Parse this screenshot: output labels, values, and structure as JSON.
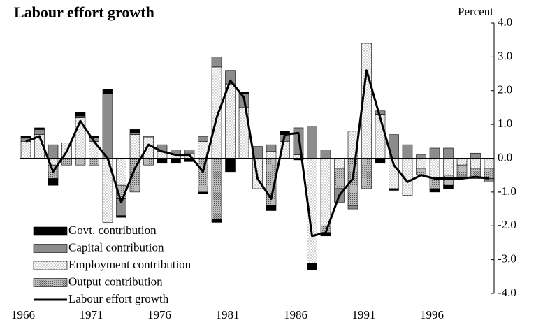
{
  "chart_data": {
    "type": "stacked-bar-line",
    "title": "Labour effort growth",
    "y_label": "Percent",
    "categories": [
      "1966",
      null,
      null,
      null,
      null,
      "1971",
      null,
      null,
      null,
      null,
      "1976",
      null,
      null,
      null,
      null,
      "1981",
      null,
      null,
      null,
      null,
      "1986",
      null,
      null,
      null,
      null,
      "1991",
      null,
      null,
      null,
      null,
      "1996",
      null,
      null,
      null,
      null
    ],
    "ylim": [
      -4,
      4
    ],
    "yticks": [
      {
        "value": 4,
        "label": "4.0"
      },
      {
        "value": 3,
        "label": "3.0"
      },
      {
        "value": 2,
        "label": "2.0"
      },
      {
        "value": 1,
        "label": "1.0"
      },
      {
        "value": 0,
        "label": "0.0"
      },
      {
        "value": -1,
        "label": "-1.0"
      },
      {
        "value": -2,
        "label": "-2.0"
      },
      {
        "value": -3,
        "label": "-3.0"
      },
      {
        "value": -4,
        "label": "-4.0"
      }
    ],
    "series": [
      {
        "name": "Govt. contribution",
        "color": "#000000",
        "pattern": "solid",
        "values": [
          0.05,
          0.05,
          -0.2,
          0,
          0.1,
          0.05,
          0.15,
          -0.05,
          0.1,
          0,
          -0.15,
          -0.15,
          -0.1,
          -0.05,
          -0.1,
          -0.4,
          0.05,
          0,
          -0.15,
          0.1,
          -0.05,
          -0.2,
          -0.1,
          0,
          0,
          0,
          -0.15,
          -0.05,
          0,
          0,
          -0.1,
          -0.1,
          0,
          0,
          0
        ]
      },
      {
        "name": "Capital contribution",
        "color": "#8c8c8c",
        "pattern": "solid",
        "values": [
          0.1,
          0.15,
          0.4,
          0,
          0.05,
          0.1,
          1.9,
          -0.5,
          0.05,
          0.05,
          0.2,
          0.15,
          0.1,
          0.15,
          0.3,
          0.4,
          0.4,
          0.35,
          0.2,
          0.2,
          0.8,
          0.95,
          0.25,
          -0.4,
          -0.1,
          0,
          0.1,
          0.7,
          0.4,
          0.1,
          0.3,
          0.3,
          -0.1,
          0.15,
          -0.1
        ]
      },
      {
        "name": "Employment contribution",
        "color": "#ffffff",
        "pattern": "dots",
        "values": [
          0.5,
          0.7,
          -0.2,
          0.45,
          1.2,
          0.5,
          -1.9,
          -0.8,
          0.7,
          0.6,
          0.2,
          0.1,
          0.15,
          0.5,
          2.7,
          2.2,
          1.5,
          -0.9,
          0.2,
          0.5,
          0.1,
          -3.1,
          -2.0,
          -0.3,
          0.8,
          3.4,
          1.3,
          -0.9,
          -1.1,
          -0.3,
          -0.6,
          -0.5,
          -0.2,
          -0.3,
          -0.3
        ]
      },
      {
        "name": "Output contribution",
        "color": "#a8a8a8",
        "pattern": "hatch",
        "values": [
          0,
          0,
          -0.4,
          -0.2,
          -0.2,
          -0.2,
          0,
          -0.4,
          -1.0,
          -0.2,
          0,
          0,
          0,
          -1.0,
          -1.8,
          0,
          0,
          0,
          -1.4,
          0,
          0,
          0,
          -0.2,
          -0.6,
          -1.4,
          -0.9,
          0,
          0,
          0,
          -0.2,
          -0.3,
          -0.3,
          -0.3,
          -0.3,
          -0.3
        ]
      }
    ],
    "line": {
      "name": "Labour effort growth",
      "color": "#000000",
      "values": [
        0.5,
        0.65,
        -0.4,
        0.2,
        1.1,
        0.5,
        0.0,
        -1.3,
        -0.3,
        0.4,
        0.2,
        0.1,
        0.1,
        -0.4,
        1.2,
        2.3,
        1.8,
        -0.6,
        -1.2,
        0.7,
        0.75,
        -2.3,
        -2.2,
        -1.1,
        -0.6,
        2.6,
        1.2,
        -0.2,
        -0.7,
        -0.5,
        -0.6,
        -0.6,
        -0.6,
        -0.55,
        -0.6
      ]
    }
  }
}
